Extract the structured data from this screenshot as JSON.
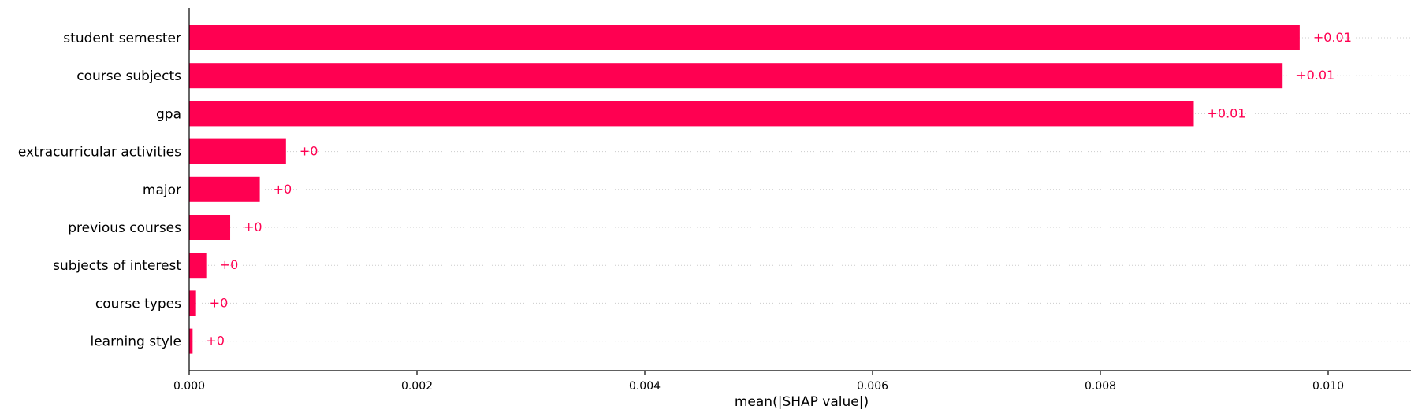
{
  "chart_data": {
    "type": "bar",
    "orientation": "horizontal",
    "categories": [
      "student semester",
      "course subjects",
      "gpa",
      "extracurricular activities",
      "major",
      "previous courses",
      "subjects of interest",
      "course types",
      "learning style"
    ],
    "values": [
      0.00975,
      0.0096,
      0.00882,
      0.00085,
      0.00062,
      0.00036,
      0.00015,
      6e-05,
      3e-05
    ],
    "data_labels": [
      "+0.01",
      "+0.01",
      "+0.01",
      "+0",
      "+0",
      "+0",
      "+0",
      "+0",
      "+0"
    ],
    "xlabel": "mean(|SHAP value|)",
    "xlim": [
      0,
      0.0107
    ],
    "xticks": [
      0.0,
      0.002,
      0.004,
      0.006,
      0.008,
      0.01
    ],
    "xtick_labels": [
      "0.000",
      "0.002",
      "0.004",
      "0.006",
      "0.008",
      "0.010"
    ],
    "bar_color": "#ff0051",
    "row_gridlines": "dotted"
  }
}
